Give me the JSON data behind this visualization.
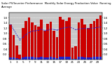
{
  "title": "Solar PV/Inverter Performance  Monthly Solar Energy Production Value  Running Average",
  "bar_values": [
    1.35,
    0.95,
    0.55,
    0.18,
    1.22,
    1.48,
    1.6,
    1.42,
    1.32,
    1.25,
    1.52,
    1.1,
    1.38,
    1.45,
    1.1,
    0.85,
    1.65,
    1.52,
    1.48,
    1.62,
    0.45,
    0.52,
    1.42,
    1.55,
    1.35,
    1.22,
    1.38,
    1.48,
    1.55,
    1.68
  ],
  "running_avg": [
    1.35,
    1.15,
    0.95,
    0.76,
    0.86,
    0.96,
    1.04,
    1.09,
    1.11,
    1.12,
    1.17,
    1.11,
    1.13,
    1.17,
    1.16,
    1.13,
    1.18,
    1.21,
    1.23,
    1.25,
    1.2,
    1.15,
    1.17,
    1.19,
    1.2,
    1.19,
    1.2,
    1.21,
    1.23,
    1.25
  ],
  "small_bar_values": [
    0.09,
    0.07,
    0.05,
    0.02,
    0.08,
    0.1,
    0.11,
    0.1,
    0.09,
    0.09,
    0.1,
    0.07,
    0.09,
    0.1,
    0.08,
    0.06,
    0.11,
    0.1,
    0.1,
    0.11,
    0.03,
    0.04,
    0.1,
    0.11,
    0.09,
    0.09,
    0.09,
    0.1,
    0.1,
    0.11
  ],
  "bar_color": "#cc0000",
  "avg_color": "#2222cc",
  "small_bar_color": "#2222cc",
  "bg_color": "#ffffff",
  "plot_bg": "#c8c8c8",
  "ylim": [
    0,
    1.8
  ],
  "ytick_vals": [
    0.2,
    0.4,
    0.6,
    0.8,
    1.0,
    1.2,
    1.4,
    1.6
  ],
  "ytick_labels": [
    "0.2",
    "0.4",
    "0.6",
    "0.8",
    "1.0",
    "1.2",
    "1.4",
    "1.6"
  ],
  "grid_color": "#ffffff",
  "n_bars": 30,
  "tick_fontsize": 3.0,
  "title_fontsize": 2.8
}
